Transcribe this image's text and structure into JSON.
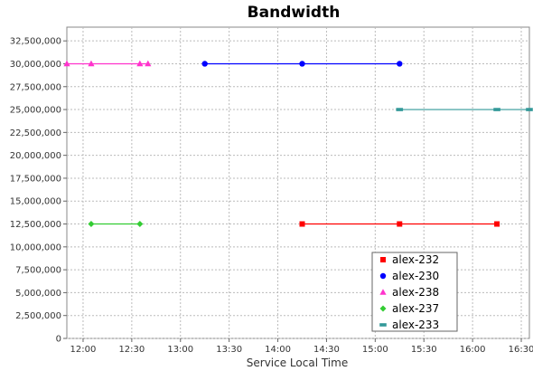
{
  "chart_data": {
    "type": "line",
    "title": "Bandwidth",
    "xlabel": "Service Local Time",
    "ylabel": "",
    "x_ticks": [
      "12:00",
      "12:30",
      "13:00",
      "13:30",
      "14:00",
      "14:30",
      "15:00",
      "15:30",
      "16:00",
      "16:30"
    ],
    "y_ticks": [
      "0",
      "2,500,000",
      "5,000,000",
      "7,500,000",
      "10,000,000",
      "12,500,000",
      "15,000,000",
      "17,500,000",
      "20,000,000",
      "22,500,000",
      "25,000,000",
      "27,500,000",
      "30,000,000",
      "32,500,000"
    ],
    "xlim": [
      "11:50",
      "16:35"
    ],
    "ylim": [
      0,
      34000000
    ],
    "grid": true,
    "legend_position": "bottom-right",
    "series": [
      {
        "name": "alex-232",
        "color": "#ff0000",
        "marker": "square",
        "points": [
          [
            "14:15",
            12500000
          ],
          [
            "15:15",
            12500000
          ],
          [
            "16:15",
            12500000
          ]
        ]
      },
      {
        "name": "alex-230",
        "color": "#0000ff",
        "marker": "circle",
        "points": [
          [
            "13:15",
            30000000
          ],
          [
            "14:15",
            30000000
          ],
          [
            "15:15",
            30000000
          ]
        ]
      },
      {
        "name": "alex-238",
        "color": "#ff33cc",
        "marker": "triangle",
        "points": [
          [
            "11:50",
            30000000
          ],
          [
            "12:05",
            30000000
          ],
          [
            "12:35",
            30000000
          ],
          [
            "12:40",
            30000000
          ]
        ]
      },
      {
        "name": "alex-237",
        "color": "#33cc33",
        "marker": "diamond",
        "points": [
          [
            "12:05",
            12500000
          ],
          [
            "12:35",
            12500000
          ]
        ]
      },
      {
        "name": "alex-233",
        "color": "#339999",
        "marker": "rect",
        "points": [
          [
            "15:15",
            25000000
          ],
          [
            "16:15",
            25000000
          ],
          [
            "16:35",
            25000000
          ]
        ]
      }
    ]
  }
}
